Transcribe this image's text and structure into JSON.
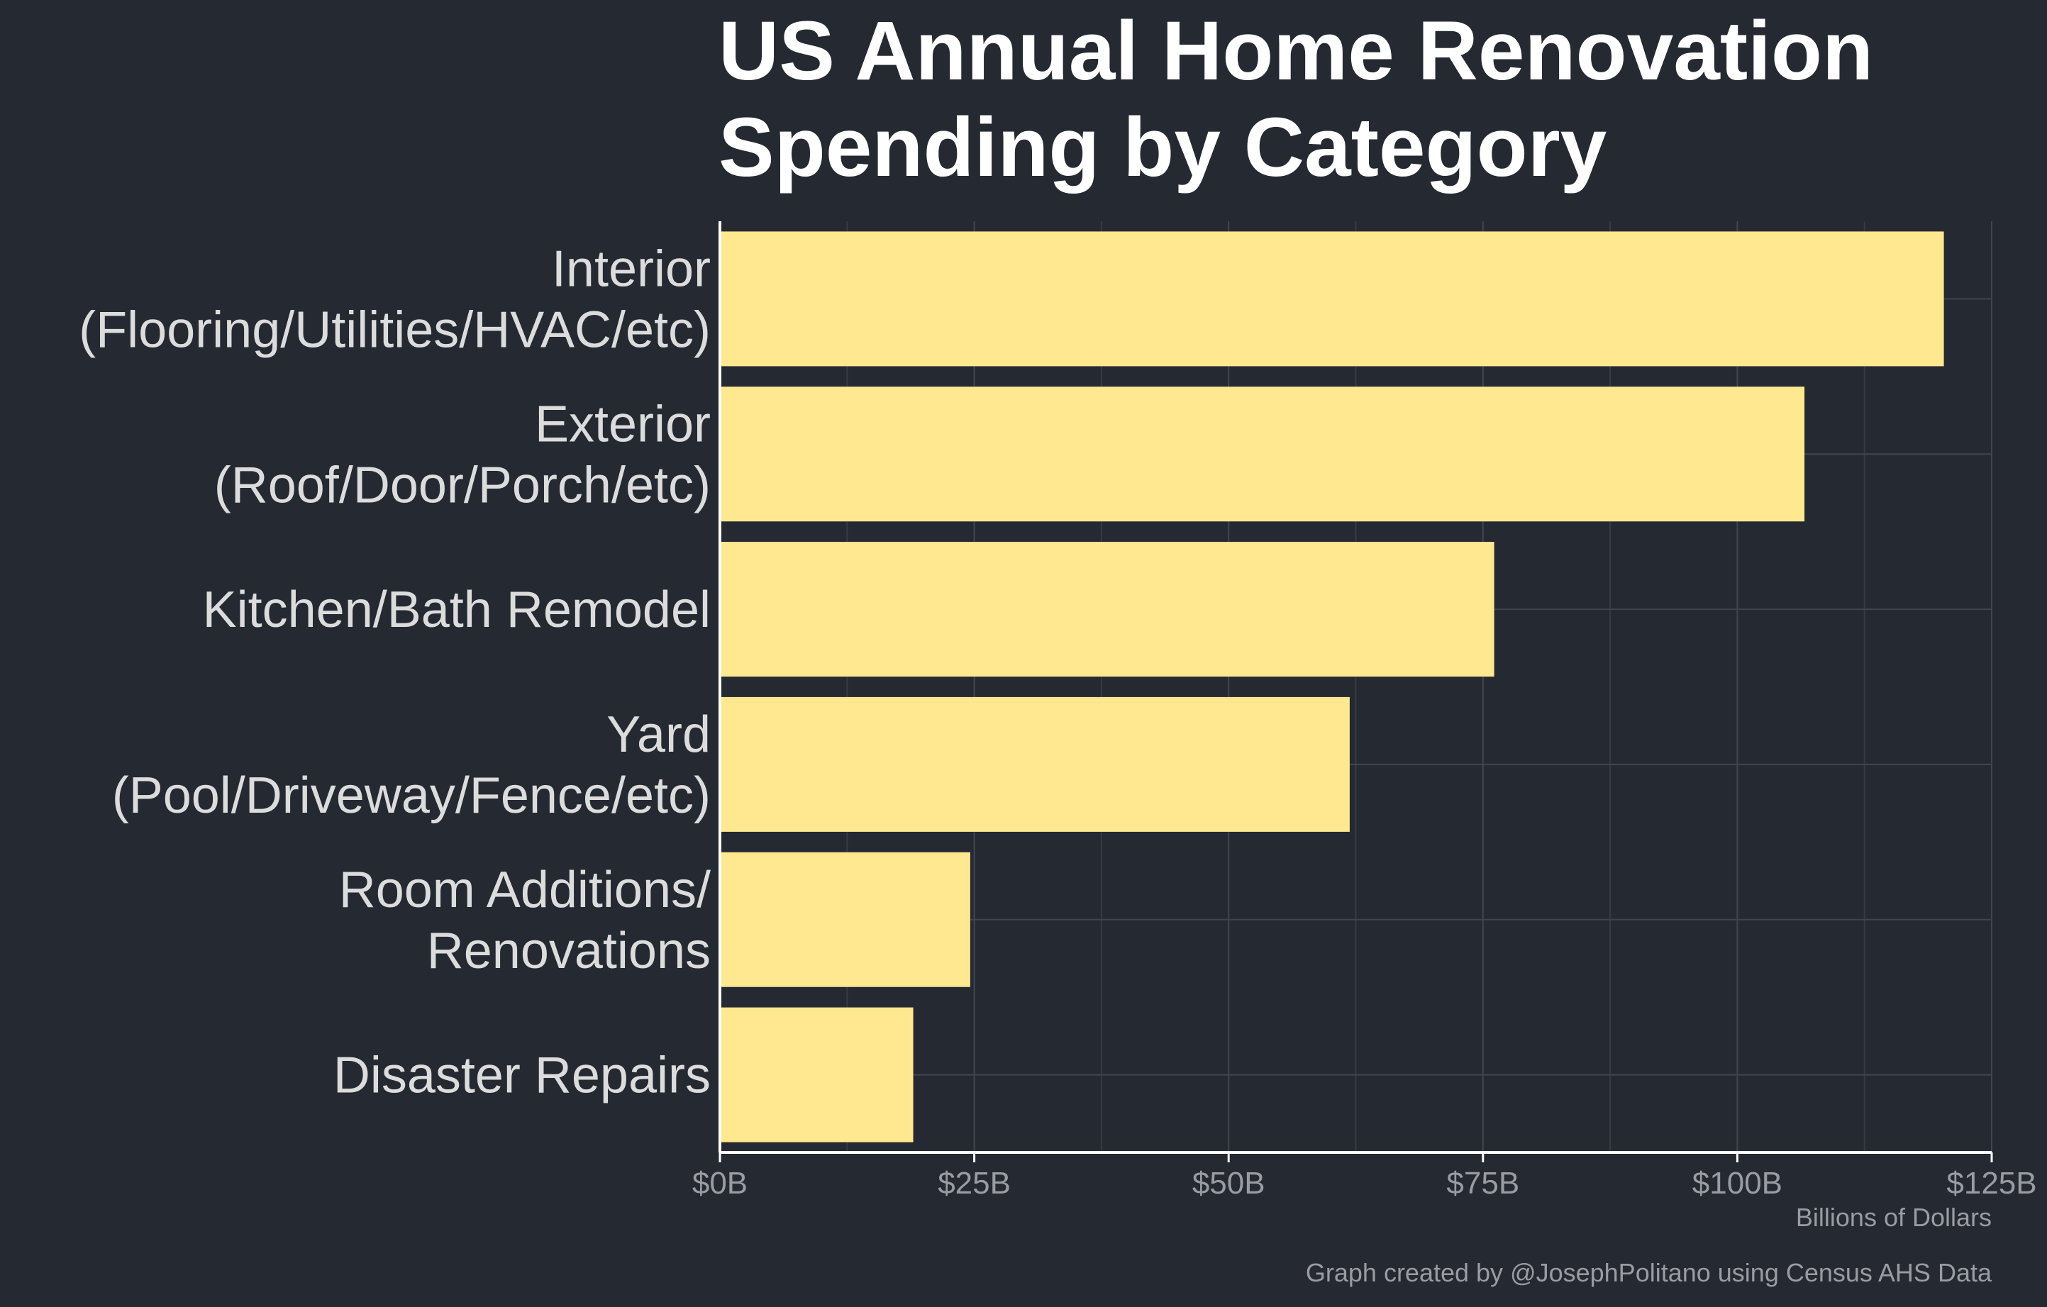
{
  "chart_data": {
    "type": "bar",
    "orientation": "horizontal",
    "title": [
      "US Annual Home Renovation",
      "Spending by Category"
    ],
    "categories": [
      [
        "Interior",
        "(Flooring/Utilities/HVAC/etc)"
      ],
      [
        "Exterior",
        "(Roof/Door/Porch/etc)"
      ],
      [
        "Kitchen/Bath Remodel"
      ],
      [
        "Yard",
        "(Pool/Driveway/Fence/etc)"
      ],
      [
        "Room Additions/",
        "Renovations"
      ],
      [
        "Disaster Repairs"
      ]
    ],
    "values": [
      120.3,
      106.6,
      76.1,
      61.9,
      24.6,
      19.0
    ],
    "xlim": [
      0,
      125
    ],
    "xticks": [
      0,
      25,
      50,
      75,
      100,
      125
    ],
    "xtick_labels": [
      "$0B",
      "$25B",
      "$50B",
      "$75B",
      "$100B",
      "$125B"
    ],
    "xlabel": "Billions of Dollars",
    "ylabel": "",
    "grid": true,
    "bar_color": "#ffe890"
  },
  "caption": "Graph created by @JosephPolitano using Census AHS Data",
  "colors": {
    "background": "#252932",
    "bar": "#ffe890",
    "title": "#ffffff",
    "category_text": "#dcdcdc",
    "muted_text": "#9a9ca3"
  }
}
